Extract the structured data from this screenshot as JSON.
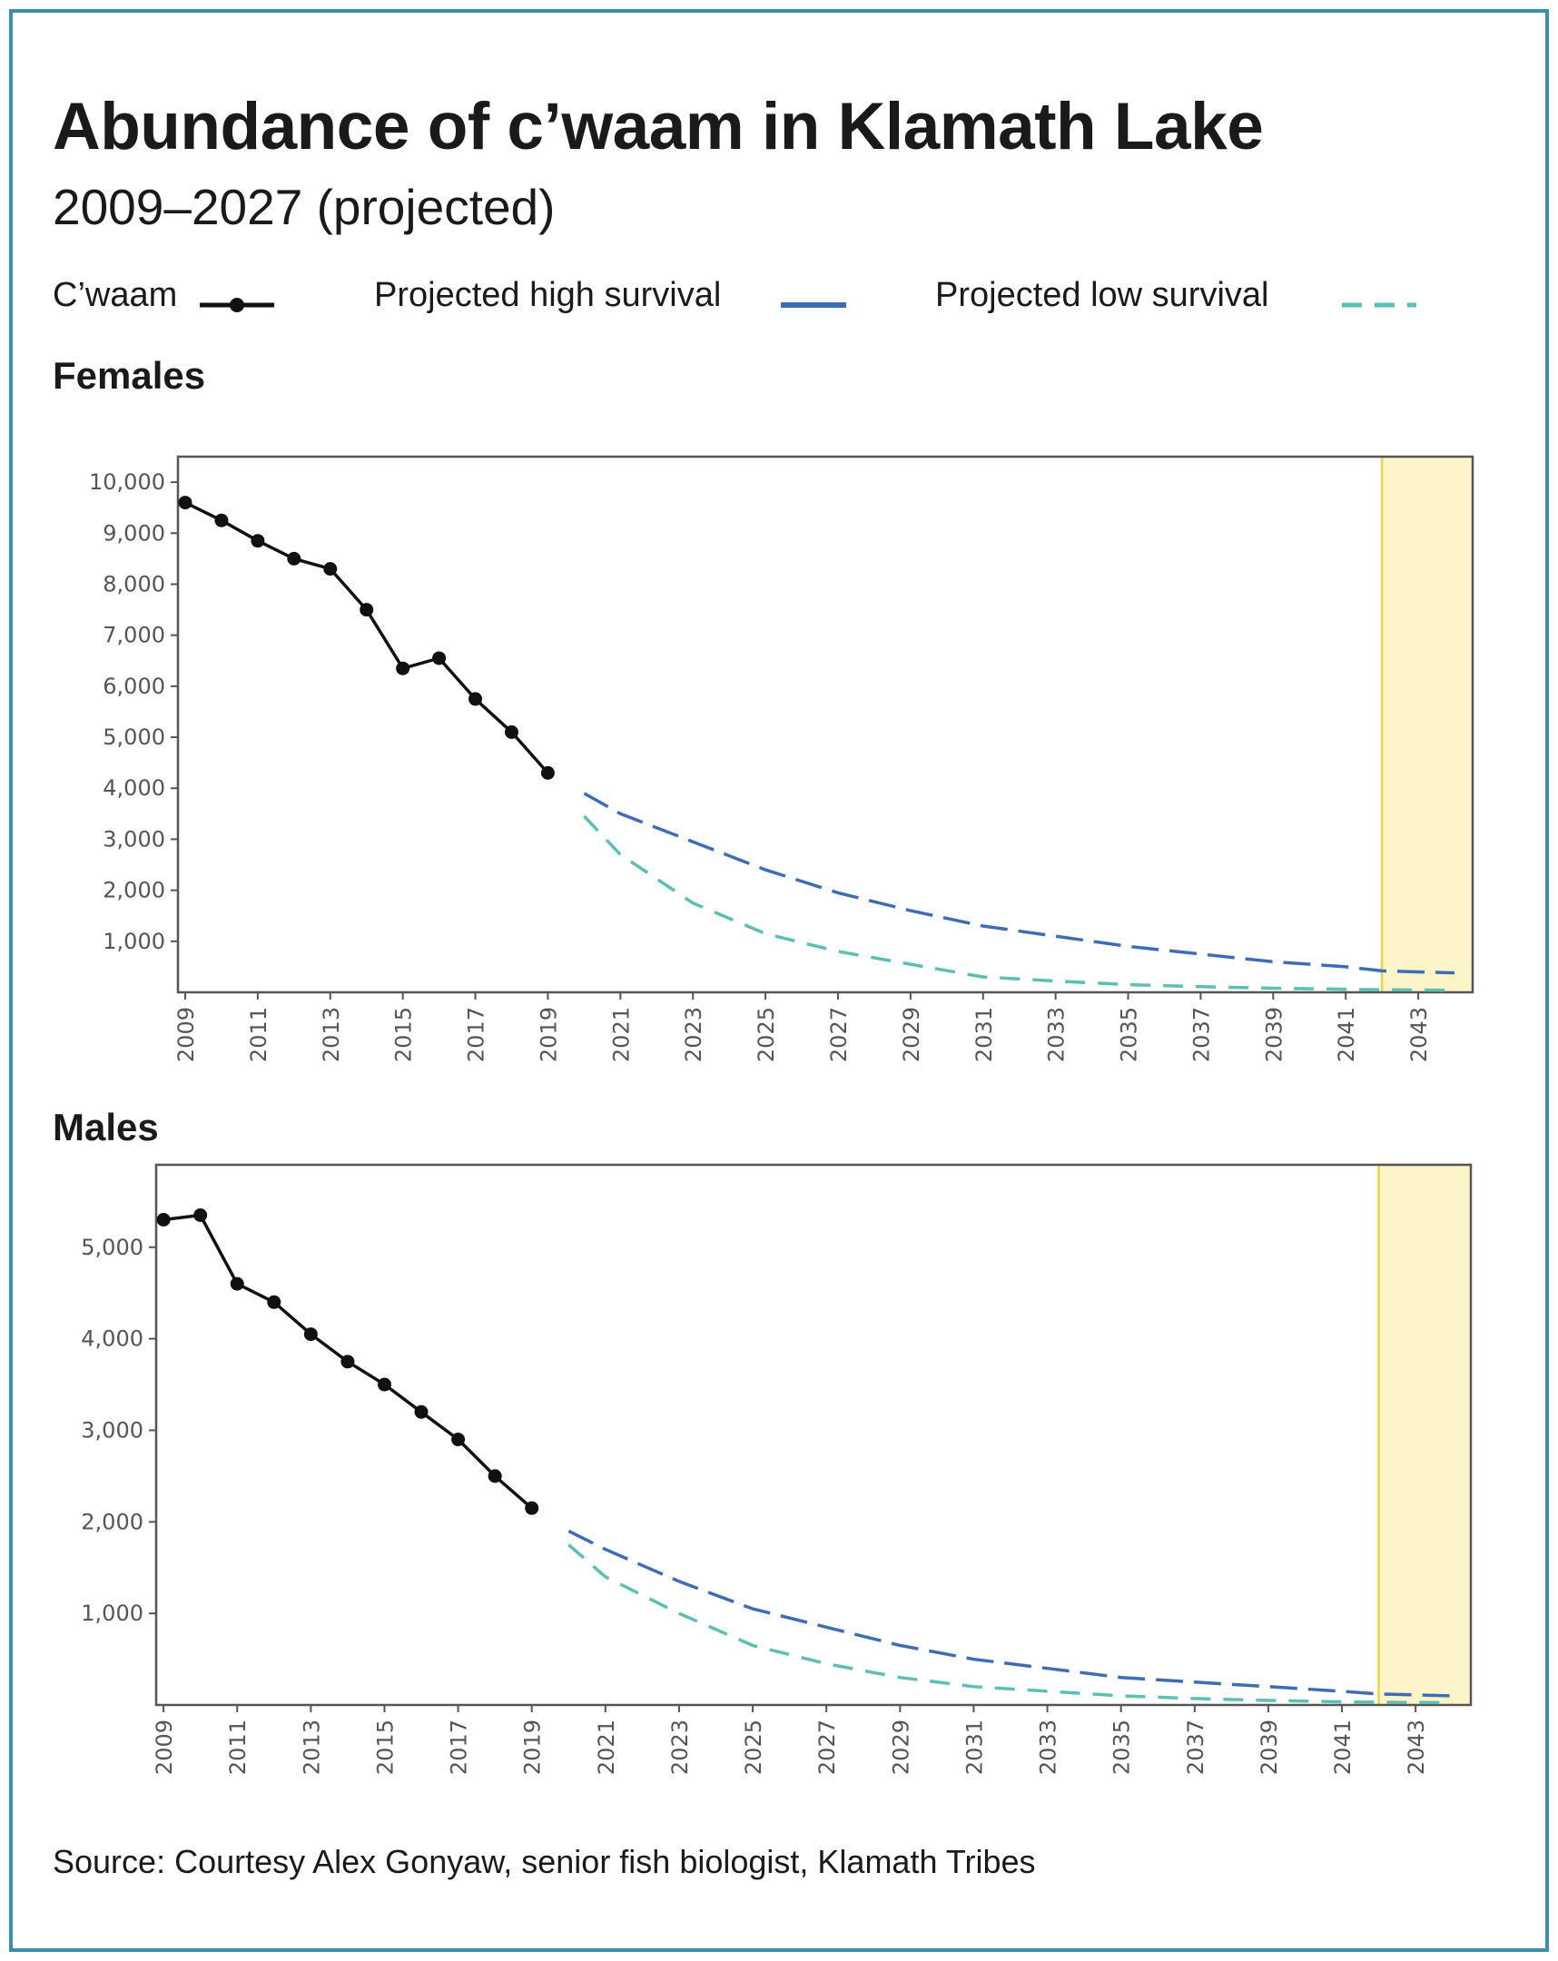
{
  "header": {
    "title": "Abundance of c’waam in Klamath Lake",
    "subtitle": "2009–2027 (projected)"
  },
  "legend": {
    "observed": "C’waam",
    "high": "Projected high survival",
    "low": "Projected low survival"
  },
  "source": "Source: Courtesy Alex Gonyaw, senior fish biologist, Klamath Tribes",
  "colors": {
    "observed": "#111111",
    "high": "#3f6db5",
    "low": "#5bbfb5",
    "highlight_fill": "#fdf5c9",
    "highlight_line": "#f2d23a",
    "axis": "#555555",
    "tick_text": "#555555",
    "frame": "#3a8fb0"
  },
  "chart_data": [
    {
      "type": "line",
      "title": "Females",
      "xlim": [
        2008.8,
        2044.5
      ],
      "ylim": [
        0,
        10500
      ],
      "highlight_start": 2042,
      "x_ticks": [
        2009,
        2011,
        2013,
        2015,
        2017,
        2019,
        2021,
        2023,
        2025,
        2027,
        2029,
        2031,
        2033,
        2035,
        2037,
        2039,
        2041,
        2043
      ],
      "y_ticks": [
        1000,
        2000,
        3000,
        4000,
        5000,
        6000,
        7000,
        8000,
        9000,
        10000
      ],
      "y_tick_labels": [
        "1,000",
        "2,000",
        "3,000",
        "4,000",
        "5,000",
        "6,000",
        "7,000",
        "8,000",
        "9,000",
        "10,000"
      ],
      "series": [
        {
          "name": "C’waam",
          "style": "solid-markers",
          "x": [
            2009,
            2010,
            2011,
            2012,
            2013,
            2014,
            2015,
            2016,
            2017,
            2018,
            2019
          ],
          "y": [
            9600,
            9250,
            8850,
            8500,
            8300,
            7500,
            6350,
            6550,
            5750,
            5100,
            4300
          ]
        },
        {
          "name": "Projected high survival",
          "style": "dashed",
          "x": [
            2020,
            2021,
            2023,
            2025,
            2027,
            2029,
            2031,
            2033,
            2035,
            2037,
            2039,
            2041,
            2042,
            2044
          ],
          "y": [
            3900,
            3500,
            2950,
            2400,
            1950,
            1600,
            1300,
            1100,
            900,
            750,
            600,
            500,
            420,
            380
          ]
        },
        {
          "name": "Projected low survival",
          "style": "dashed",
          "x": [
            2020,
            2021,
            2023,
            2025,
            2027,
            2029,
            2031,
            2033,
            2035,
            2037,
            2039,
            2041,
            2042,
            2044
          ],
          "y": [
            3450,
            2700,
            1750,
            1150,
            800,
            550,
            300,
            220,
            150,
            110,
            80,
            60,
            50,
            40
          ]
        }
      ]
    },
    {
      "type": "line",
      "title": "Males",
      "xlim": [
        2008.8,
        2044.5
      ],
      "ylim": [
        0,
        5900
      ],
      "highlight_start": 2042,
      "x_ticks": [
        2009,
        2011,
        2013,
        2015,
        2017,
        2019,
        2021,
        2023,
        2025,
        2027,
        2029,
        2031,
        2033,
        2035,
        2037,
        2039,
        2041,
        2043
      ],
      "y_ticks": [
        1000,
        2000,
        3000,
        4000,
        5000
      ],
      "y_tick_labels": [
        "1,000",
        "2,000",
        "3,000",
        "4,000",
        "5,000"
      ],
      "series": [
        {
          "name": "C’waam",
          "style": "solid-markers",
          "x": [
            2009,
            2010,
            2011,
            2012,
            2013,
            2014,
            2015,
            2016,
            2017,
            2018,
            2019
          ],
          "y": [
            5300,
            5350,
            4600,
            4400,
            4050,
            3750,
            3500,
            3200,
            2900,
            2500,
            2150
          ]
        },
        {
          "name": "Projected high survival",
          "style": "dashed",
          "x": [
            2020,
            2021,
            2023,
            2025,
            2027,
            2029,
            2031,
            2033,
            2035,
            2037,
            2039,
            2041,
            2042,
            2044
          ],
          "y": [
            1900,
            1700,
            1350,
            1050,
            850,
            650,
            500,
            400,
            300,
            250,
            200,
            150,
            120,
            100
          ]
        },
        {
          "name": "Projected low survival",
          "style": "dashed",
          "x": [
            2020,
            2021,
            2023,
            2025,
            2027,
            2029,
            2031,
            2033,
            2035,
            2037,
            2039,
            2041,
            2042,
            2044
          ],
          "y": [
            1750,
            1400,
            1000,
            650,
            450,
            300,
            200,
            150,
            100,
            70,
            50,
            35,
            30,
            25
          ]
        }
      ]
    }
  ]
}
